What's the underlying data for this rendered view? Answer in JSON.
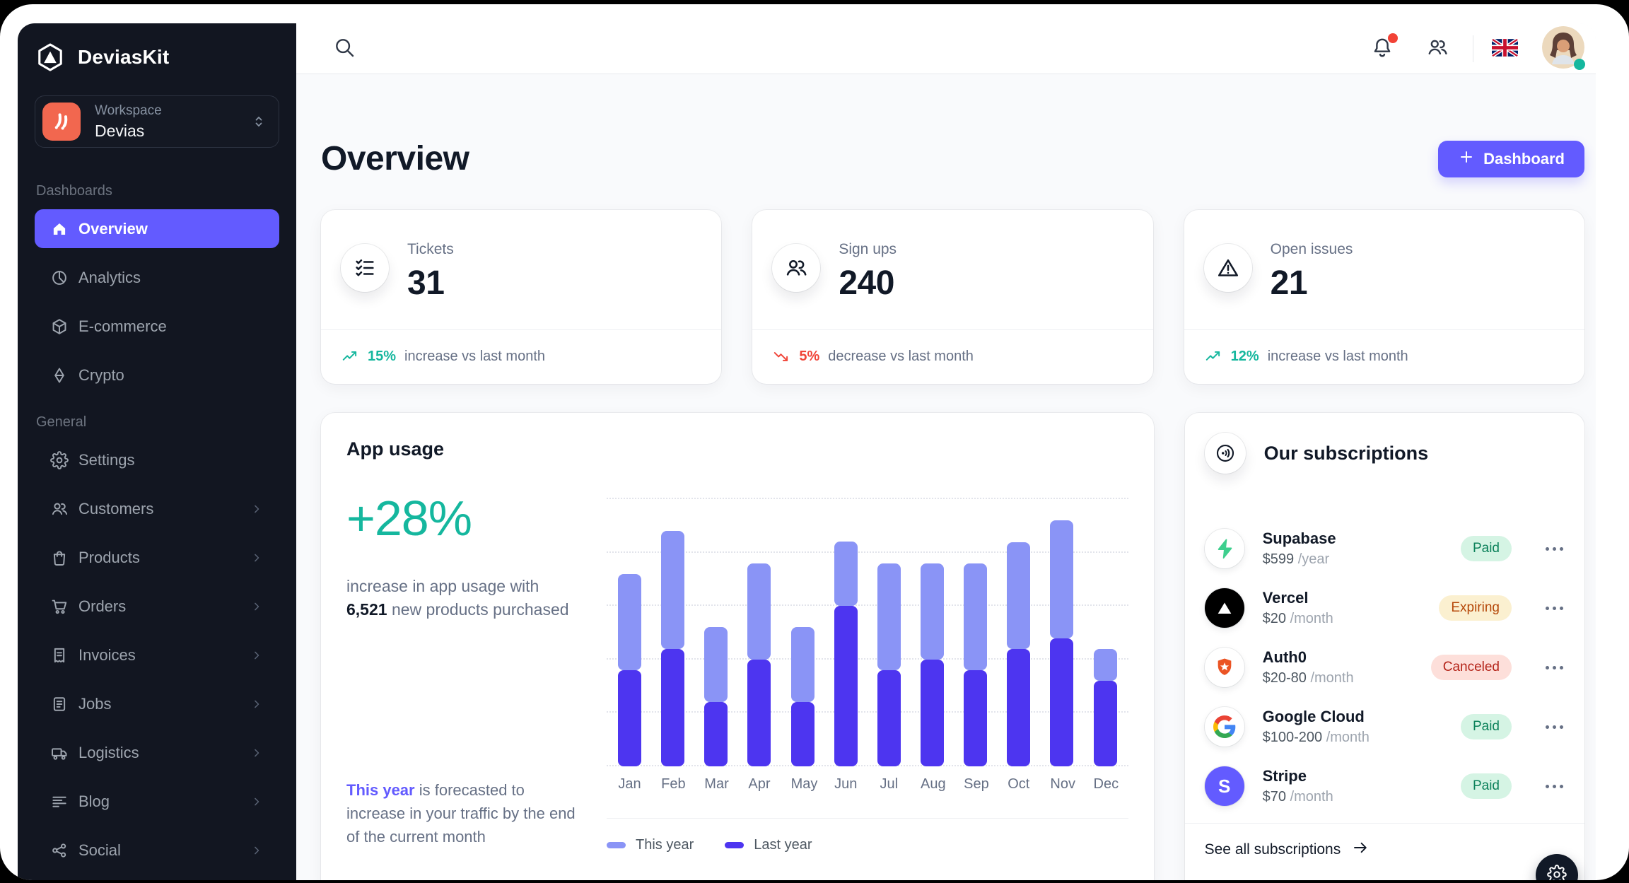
{
  "brand": {
    "name": "DeviasKit"
  },
  "workspace": {
    "label": "Workspace",
    "name": "Devias"
  },
  "sidebar": {
    "sections": [
      {
        "label": "Dashboards",
        "items": [
          {
            "label": "Overview",
            "icon": "house",
            "active": true,
            "chevron": false
          },
          {
            "label": "Analytics",
            "icon": "pie",
            "active": false,
            "chevron": false
          },
          {
            "label": "E-commerce",
            "icon": "cube",
            "active": false,
            "chevron": false
          },
          {
            "label": "Crypto",
            "icon": "diamond",
            "active": false,
            "chevron": false
          }
        ]
      },
      {
        "label": "General",
        "items": [
          {
            "label": "Settings",
            "icon": "gear",
            "active": false,
            "chevron": false
          },
          {
            "label": "Customers",
            "icon": "users",
            "active": false,
            "chevron": true
          },
          {
            "label": "Products",
            "icon": "bag",
            "active": false,
            "chevron": true
          },
          {
            "label": "Orders",
            "icon": "cart",
            "active": false,
            "chevron": true
          },
          {
            "label": "Invoices",
            "icon": "invoice",
            "active": false,
            "chevron": true
          },
          {
            "label": "Jobs",
            "icon": "file",
            "active": false,
            "chevron": true
          },
          {
            "label": "Logistics",
            "icon": "truck",
            "active": false,
            "chevron": true
          },
          {
            "label": "Blog",
            "icon": "lines",
            "active": false,
            "chevron": true
          },
          {
            "label": "Social",
            "icon": "share",
            "active": false,
            "chevron": true
          }
        ]
      }
    ]
  },
  "page": {
    "title": "Overview",
    "add_button_label": "Dashboard"
  },
  "stats": [
    {
      "label": "Tickets",
      "value": "31",
      "icon": "checklist",
      "trend": "up",
      "trend_value": "15%",
      "trend_text": "increase vs last month"
    },
    {
      "label": "Sign ups",
      "value": "240",
      "icon": "users",
      "trend": "down",
      "trend_value": "5%",
      "trend_text": "decrease vs last month"
    },
    {
      "label": "Open issues",
      "value": "21",
      "icon": "warning",
      "trend": "up",
      "trend_value": "12%",
      "trend_text": "increase vs last month"
    }
  ],
  "app_usage": {
    "title": "App usage",
    "highlight": "+28%",
    "desc_before": "increase in app usage with ",
    "desc_strong": "6,521",
    "desc_after": " new products purchased",
    "forecast_lead": "This year",
    "forecast_rest": " is forecasted to increase in your traffic by the end of the current month"
  },
  "chart_data": {
    "type": "bar",
    "stacked": true,
    "title": "App usage",
    "xlabel": "",
    "ylabel": "",
    "ylim": [
      0,
      25
    ],
    "grid_step": 5,
    "grid": true,
    "legend_position": "bottom",
    "categories": [
      "Jan",
      "Feb",
      "Mar",
      "Apr",
      "May",
      "Jun",
      "Jul",
      "Aug",
      "Sep",
      "Oct",
      "Nov",
      "Dec"
    ],
    "series": [
      {
        "name": "This year",
        "color": "#8a94f6",
        "stack_order": "top",
        "values": [
          9,
          11,
          7,
          9,
          7,
          6,
          10,
          9,
          10,
          10,
          11,
          3
        ]
      },
      {
        "name": "Last year",
        "color": "#4d35f0",
        "stack_order": "bottom",
        "values": [
          9,
          11,
          6,
          10,
          6,
          15,
          9,
          10,
          9,
          11,
          12,
          8
        ]
      }
    ]
  },
  "subscriptions": {
    "title": "Our subscriptions",
    "see_all": "See all subscriptions",
    "items": [
      {
        "name": "Supabase",
        "price": "$599",
        "period": "/year",
        "status": "paid",
        "status_label": "Paid",
        "logo": "supabase"
      },
      {
        "name": "Vercel",
        "price": "$20",
        "period": "/month",
        "status": "expiring",
        "status_label": "Expiring",
        "logo": "vercel"
      },
      {
        "name": "Auth0",
        "price": "$20-80",
        "period": "/month",
        "status": "canceled",
        "status_label": "Canceled",
        "logo": "auth0"
      },
      {
        "name": "Google Cloud",
        "price": "$100-200",
        "period": "/month",
        "status": "paid",
        "status_label": "Paid",
        "logo": "google"
      },
      {
        "name": "Stripe",
        "price": "$70",
        "period": "/month",
        "status": "paid",
        "status_label": "Paid",
        "logo": "stripe"
      }
    ]
  },
  "header_icons": [
    "notifications-bell",
    "contacts",
    "language-flag-uk",
    "user-avatar"
  ],
  "colors": {
    "primary": "#635bff",
    "success": "#15b79e",
    "error": "#f04438",
    "sidebar_bg": "#121621",
    "workspace_logo_bg": "#f2674f",
    "pill_paid_bg": "#d5f4e4",
    "pill_paid_fg": "#0b815a",
    "pill_expiring_bg": "#fbf0d0",
    "pill_expiring_fg": "#b54708",
    "pill_canceled_bg": "#fddfda",
    "pill_canceled_fg": "#b42318"
  }
}
